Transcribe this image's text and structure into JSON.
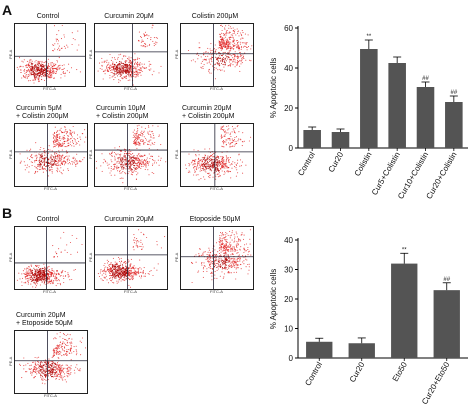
{
  "panels": [
    {
      "letter": "A",
      "flow_plots": [
        {
          "title_lines": [
            "Control"
          ],
          "axis_x": "FITC-A",
          "axis_y": "PE-A"
        },
        {
          "title_lines": [
            "Curcumin 20μM"
          ],
          "axis_x": "FITC-A",
          "axis_y": "PE-A"
        },
        {
          "title_lines": [
            "Colistin 200μM"
          ],
          "axis_x": "FITC-A",
          "axis_y": "PE-A"
        },
        {
          "title_lines": [
            "Curcumin 5μM",
            "+ Colistin 200μM"
          ],
          "axis_x": "FITC-A",
          "axis_y": "PE-A"
        },
        {
          "title_lines": [
            "Curcumin 10μM",
            "+ Colistin 200μM"
          ],
          "axis_x": "FITC-A",
          "axis_y": "PE-A"
        },
        {
          "title_lines": [
            "Curcumin 20μM",
            "+ Colistin 200μM"
          ],
          "axis_x": "FITC-A",
          "axis_y": "PE-A"
        }
      ]
    },
    {
      "letter": "B",
      "flow_plots": [
        {
          "title_lines": [
            "Control"
          ],
          "axis_x": "FITC-A",
          "axis_y": "PE-A"
        },
        {
          "title_lines": [
            "Curcumin 20μM"
          ],
          "axis_x": "FITC-A",
          "axis_y": "PE-A"
        },
        {
          "title_lines": [
            "Etoposide 50μM"
          ],
          "axis_x": "FITC-A",
          "axis_y": "PE-A"
        },
        {
          "title_lines": [
            "Curcumin 20μM",
            "+ Etoposide 50μM"
          ],
          "axis_x": "FITC-A",
          "axis_y": "PE-A"
        }
      ]
    }
  ],
  "chart_data": [
    {
      "type": "bar",
      "categories": [
        "Control",
        "Cur20",
        "Colistin",
        "Cur5+Colistin",
        "Cur10+Colistin",
        "Cur20+Colistin"
      ],
      "values": [
        9,
        8,
        49.5,
        42.5,
        30.5,
        23
      ],
      "errors": [
        1.5,
        1.5,
        4.5,
        3,
        2.5,
        3
      ],
      "annotations": [
        "",
        "",
        "**",
        "",
        "##",
        "##"
      ],
      "ylabel": "% Apoptotic cells",
      "ylim": [
        0,
        60
      ],
      "yticks": [
        0,
        20,
        40,
        60
      ],
      "color": "#545454"
    },
    {
      "type": "bar",
      "categories": [
        "Control",
        "Cur20",
        "Eto50",
        "Cur20+Eto50"
      ],
      "values": [
        5.5,
        5,
        32,
        23
      ],
      "errors": [
        1.2,
        1.8,
        3.5,
        2.5
      ],
      "annotations": [
        "",
        "",
        "**",
        "##"
      ],
      "ylabel": "% Apoptotic cells",
      "ylim": [
        0,
        40
      ],
      "yticks": [
        0,
        10,
        20,
        30,
        40
      ],
      "color": "#545454"
    }
  ]
}
